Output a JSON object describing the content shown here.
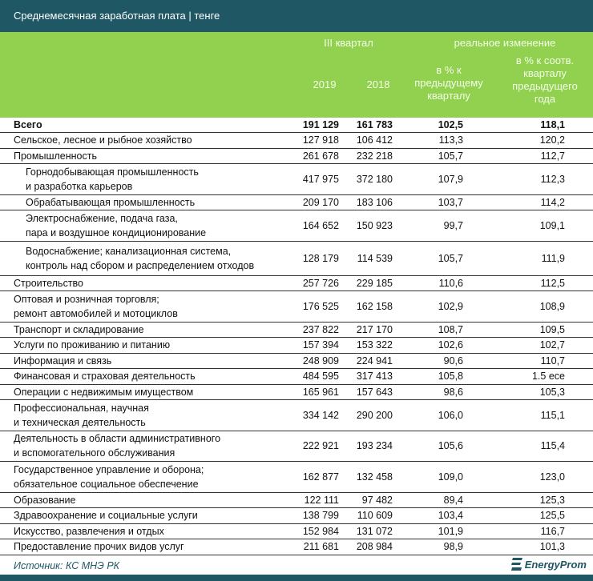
{
  "title": "Среднемесячная заработная плата  |  тенге",
  "header": {
    "group1": "III квартал",
    "group2": "реальное изменение",
    "col_2019": "2019",
    "col_2018": "2018",
    "col_prev_q": [
      "в % к",
      "предыдущему",
      "кварталу"
    ],
    "col_prev_y": [
      "в % к соотв.",
      "кварталу",
      "предыдущего",
      "года"
    ]
  },
  "rows": [
    {
      "label": [
        "Всего"
      ],
      "v2019": "191 129",
      "v2018": "161 783",
      "prev_q": "102,5",
      "prev_y": "118,1",
      "bold": true
    },
    {
      "label": [
        "Сельское, лесное и рыбное хозяйство"
      ],
      "v2019": "127 918",
      "v2018": "106 412",
      "prev_q": "113,3",
      "prev_y": "120,2"
    },
    {
      "label": [
        "Промышленность"
      ],
      "v2019": "261 678",
      "v2018": "232 218",
      "prev_q": "105,7",
      "prev_y": "112,7"
    },
    {
      "label": [
        "Горнодобывающая промышленность",
        "и разработка карьеров"
      ],
      "v2019": "417 975",
      "v2018": "372 180",
      "prev_q": "107,9",
      "prev_y": "112,3",
      "indent": true
    },
    {
      "label": [
        "Обрабатывающая промышленность"
      ],
      "v2019": "209 170",
      "v2018": "183 106",
      "prev_q": "103,7",
      "prev_y": "114,2",
      "indent": true
    },
    {
      "label": [
        "Электроснабжение, подача газа,",
        "пара и воздушное  кондиционирование"
      ],
      "v2019": "164 652",
      "v2018": "150 923",
      "prev_q": "99,7",
      "prev_y": "109,1",
      "indent": true
    },
    {
      "label": [
        "Водоснабжение; канализационная система,",
        "контроль над сбором и распределением отходов"
      ],
      "v2019": "128 179",
      "v2018": "114 539",
      "prev_q": "105,7",
      "prev_y": "111,9",
      "indent": true
    },
    {
      "label": [
        "Строительство"
      ],
      "v2019": "257 726",
      "v2018": "229 185",
      "prev_q": "110,6",
      "prev_y": "112,5"
    },
    {
      "label": [
        "Оптовая и розничная торговля;",
        "ремонт автомобилей и мотоциклов"
      ],
      "v2019": "176 525",
      "v2018": "162 158",
      "prev_q": "102,9",
      "prev_y": "108,9"
    },
    {
      "label": [
        "Транспорт и складирование"
      ],
      "v2019": "237 822",
      "v2018": "217 170",
      "prev_q": "108,7",
      "prev_y": "109,5"
    },
    {
      "label": [
        "Услуги по проживанию и питанию"
      ],
      "v2019": "157 394",
      "v2018": "153 322",
      "prev_q": "102,6",
      "prev_y": "102,7"
    },
    {
      "label": [
        "Информация и связь"
      ],
      "v2019": "248 909",
      "v2018": "224 941",
      "prev_q": "90,6",
      "prev_y": "110,7"
    },
    {
      "label": [
        "Финансовая и страховая деятельность"
      ],
      "v2019": "484 595",
      "v2018": "317 413",
      "prev_q": "105,8",
      "prev_y": "1.5 есе"
    },
    {
      "label": [
        "Операции с недвижимым имуществом"
      ],
      "v2019": "165 961",
      "v2018": "157 643",
      "prev_q": "98,6",
      "prev_y": "105,3"
    },
    {
      "label": [
        "Профессиональная, научная",
        "и техническая деятельность"
      ],
      "v2019": "334 142",
      "v2018": "290 200",
      "prev_q": "106,0",
      "prev_y": "115,1"
    },
    {
      "label": [
        "Деятельность в области административного",
        "и вспомогательного обслуживания"
      ],
      "v2019": "222 921",
      "v2018": "193 234",
      "prev_q": "105,6",
      "prev_y": "115,4"
    },
    {
      "label": [
        "Государственное управление и оборона;",
        "обязательное социальное обеспечение"
      ],
      "v2019": "162 877",
      "v2018": "132 458",
      "prev_q": "109,0",
      "prev_y": "123,0"
    },
    {
      "label": [
        "Образование"
      ],
      "v2019": "122 111",
      "v2018": "97 482",
      "prev_q": "89,4",
      "prev_y": "125,3"
    },
    {
      "label": [
        "Здравоохранение и социальные услуги"
      ],
      "v2019": "138 799",
      "v2018": "110 609",
      "prev_q": "103,4",
      "prev_y": "125,5"
    },
    {
      "label": [
        "Искусство, развлечения и отдых"
      ],
      "v2019": "152 984",
      "v2018": "131 072",
      "prev_q": "101,9",
      "prev_y": "116,7"
    },
    {
      "label": [
        "Предоставление прочих видов услуг"
      ],
      "v2019": "211 681",
      "v2018": "208 984",
      "prev_q": "98,9",
      "prev_y": "101,3"
    }
  ],
  "footer": {
    "source": "Источник: КС МНЭ РК",
    "logo": "EnergyProm"
  },
  "colors": {
    "title_bar": "#1f5864",
    "header_green": "#92d050"
  }
}
